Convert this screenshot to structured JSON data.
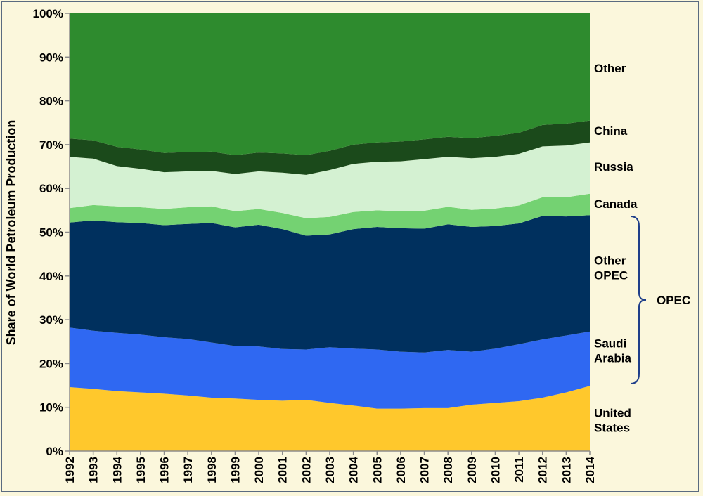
{
  "chart_data": {
    "type": "area",
    "stacked": true,
    "ylabel": "Share of World Petroleum Production",
    "xlabel": "",
    "ylim": [
      0,
      100
    ],
    "y_ticks": [
      "0%",
      "10%",
      "20%",
      "30%",
      "40%",
      "50%",
      "60%",
      "70%",
      "80%",
      "90%",
      "100%"
    ],
    "x": [
      1992,
      1993,
      1994,
      1995,
      1996,
      1997,
      1998,
      1999,
      2000,
      2001,
      2002,
      2003,
      2004,
      2005,
      2006,
      2007,
      2008,
      2009,
      2010,
      2011,
      2012,
      2013,
      2014
    ],
    "series": [
      {
        "name": "United States",
        "label_lines": [
          "United",
          "States"
        ],
        "color": "#ffc82c",
        "values": [
          14.6,
          14.2,
          13.7,
          13.4,
          13.1,
          12.7,
          12.2,
          12.0,
          11.7,
          11.5,
          11.7,
          11.0,
          10.4,
          9.7,
          9.7,
          9.8,
          9.8,
          10.6,
          11.0,
          11.4,
          12.2,
          13.4,
          14.9
        ]
      },
      {
        "name": "Saudi Arabia",
        "label_lines": [
          "Saudi",
          "Arabia"
        ],
        "color": "#2f68f2",
        "values": [
          13.6,
          13.3,
          13.3,
          13.2,
          12.9,
          12.9,
          12.6,
          12.0,
          12.2,
          11.8,
          11.5,
          12.7,
          13.0,
          13.5,
          13.0,
          12.7,
          13.3,
          12.1,
          12.4,
          13.0,
          13.3,
          13.0,
          12.4
        ]
      },
      {
        "name": "Other OPEC",
        "label_lines": [
          "Other",
          "OPEC"
        ],
        "color": "#00305e",
        "values": [
          24.0,
          25.2,
          25.3,
          25.5,
          25.6,
          26.3,
          27.3,
          27.1,
          27.8,
          27.4,
          26.0,
          25.8,
          27.3,
          28.0,
          28.2,
          28.3,
          28.7,
          28.5,
          28.0,
          27.6,
          28.2,
          27.2,
          26.6
        ]
      },
      {
        "name": "Canada",
        "label_lines": [
          "Canada"
        ],
        "color": "#74d272",
        "values": [
          3.3,
          3.5,
          3.6,
          3.6,
          3.7,
          3.8,
          3.8,
          3.7,
          3.6,
          3.7,
          4.0,
          4.0,
          3.9,
          3.8,
          3.9,
          4.1,
          4.0,
          3.9,
          4.0,
          4.1,
          4.3,
          4.4,
          4.9
        ]
      },
      {
        "name": "Russia",
        "label_lines": [
          "Russia"
        ],
        "color": "#d4f1d2",
        "values": [
          11.7,
          10.6,
          9.2,
          8.8,
          8.4,
          8.2,
          8.1,
          8.5,
          8.6,
          9.2,
          9.9,
          10.7,
          11.0,
          11.1,
          11.4,
          11.8,
          11.4,
          11.8,
          11.8,
          11.8,
          11.6,
          11.8,
          11.7
        ]
      },
      {
        "name": "China",
        "label_lines": [
          "China"
        ],
        "color": "#1b4a1b",
        "values": [
          4.2,
          4.2,
          4.4,
          4.4,
          4.4,
          4.4,
          4.4,
          4.3,
          4.3,
          4.4,
          4.5,
          4.4,
          4.4,
          4.4,
          4.5,
          4.5,
          4.6,
          4.6,
          4.8,
          4.8,
          4.9,
          5.0,
          5.0
        ]
      },
      {
        "name": "Other",
        "label_lines": [
          "Other"
        ],
        "color": "#2e8b2e",
        "values": [
          28.6,
          29.0,
          30.5,
          31.1,
          31.9,
          31.7,
          31.6,
          32.4,
          31.8,
          32.0,
          32.4,
          31.4,
          30.0,
          29.5,
          29.3,
          28.8,
          28.2,
          28.5,
          28.0,
          27.3,
          25.5,
          25.2,
          24.5
        ]
      }
    ],
    "brace": {
      "label": "OPEC",
      "spans": [
        "Saudi Arabia",
        "Other OPEC"
      ]
    },
    "grid": false,
    "legend": "inline-right"
  }
}
